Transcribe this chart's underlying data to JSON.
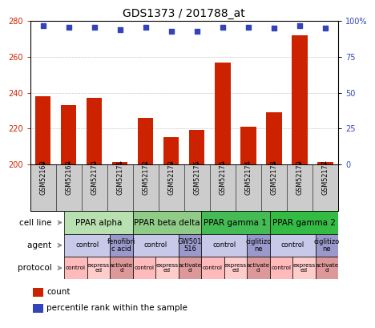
{
  "title": "GDS1373 / 201788_at",
  "samples": [
    "GSM52168",
    "GSM52169",
    "GSM52170",
    "GSM52171",
    "GSM52172",
    "GSM52173",
    "GSM52175",
    "GSM52176",
    "GSM52174",
    "GSM52178",
    "GSM52179",
    "GSM52177"
  ],
  "counts": [
    238,
    233,
    237,
    201,
    226,
    215,
    219,
    257,
    221,
    229,
    272,
    201
  ],
  "percentiles": [
    97,
    96,
    96,
    94,
    96,
    93,
    93,
    96,
    96,
    95,
    97,
    95
  ],
  "ylim_left": [
    200,
    280
  ],
  "ylim_right": [
    0,
    100
  ],
  "yticks_left": [
    200,
    220,
    240,
    260,
    280
  ],
  "yticks_right": [
    0,
    25,
    50,
    75,
    100
  ],
  "bar_color": "#cc2200",
  "dot_color": "#3344bb",
  "cell_line_groups": [
    {
      "label": "PPAR alpha",
      "start": 0,
      "end": 3,
      "color": "#b8e0b0"
    },
    {
      "label": "PPAR beta delta",
      "start": 3,
      "end": 6,
      "color": "#90cc88"
    },
    {
      "label": "PPAR gamma 1",
      "start": 6,
      "end": 9,
      "color": "#44bb55"
    },
    {
      "label": "PPAR gamma 2",
      "start": 9,
      "end": 12,
      "color": "#33bb44"
    }
  ],
  "agent_groups": [
    {
      "label": "control",
      "start": 0,
      "end": 2,
      "color": "#c8c8e8"
    },
    {
      "label": "fenofibri\nc acid",
      "start": 2,
      "end": 3,
      "color": "#9999cc"
    },
    {
      "label": "control",
      "start": 3,
      "end": 5,
      "color": "#c8c8e8"
    },
    {
      "label": "GW501\n516",
      "start": 5,
      "end": 6,
      "color": "#9999cc"
    },
    {
      "label": "control",
      "start": 6,
      "end": 8,
      "color": "#c8c8e8"
    },
    {
      "label": "ciglitizo\nne",
      "start": 8,
      "end": 9,
      "color": "#9999cc"
    },
    {
      "label": "control",
      "start": 9,
      "end": 11,
      "color": "#c8c8e8"
    },
    {
      "label": "ciglitizo\nne",
      "start": 11,
      "end": 12,
      "color": "#9999cc"
    }
  ],
  "protocol_groups": [
    {
      "label": "control",
      "start": 0,
      "end": 1,
      "color": "#ffbbbb"
    },
    {
      "label": "express\ned",
      "start": 1,
      "end": 2,
      "color": "#ffcccc"
    },
    {
      "label": "activate\nd",
      "start": 2,
      "end": 3,
      "color": "#dd9999"
    },
    {
      "label": "control",
      "start": 3,
      "end": 4,
      "color": "#ffbbbb"
    },
    {
      "label": "express\ned",
      "start": 4,
      "end": 5,
      "color": "#ffcccc"
    },
    {
      "label": "activate\nd",
      "start": 5,
      "end": 6,
      "color": "#dd9999"
    },
    {
      "label": "control",
      "start": 6,
      "end": 7,
      "color": "#ffbbbb"
    },
    {
      "label": "express\ned",
      "start": 7,
      "end": 8,
      "color": "#ffcccc"
    },
    {
      "label": "activate\nd",
      "start": 8,
      "end": 9,
      "color": "#dd9999"
    },
    {
      "label": "control",
      "start": 9,
      "end": 10,
      "color": "#ffbbbb"
    },
    {
      "label": "express\ned",
      "start": 10,
      "end": 11,
      "color": "#ffcccc"
    },
    {
      "label": "activate\nd",
      "start": 11,
      "end": 12,
      "color": "#dd9999"
    }
  ],
  "tick_label_color_left": "#cc2200",
  "tick_label_color_right": "#3344bb",
  "legend_count_color": "#cc2200",
  "legend_dot_color": "#3344bb",
  "xticklabel_bg": "#cccccc",
  "arrow_color": "#888888"
}
